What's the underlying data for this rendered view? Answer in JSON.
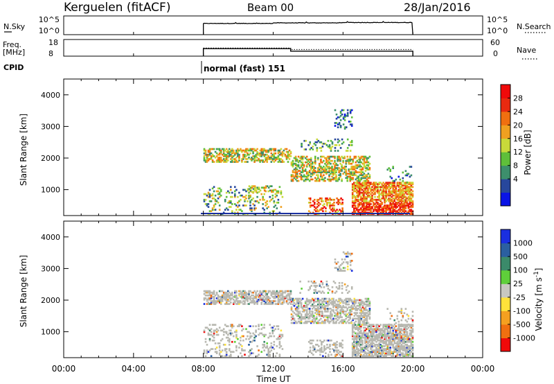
{
  "header": {
    "station": "Kerguelen (fitACF)",
    "beam": "Beam 00",
    "date": "28/Jan/2016"
  },
  "nsky_panel": {
    "left_label": "N.Sky",
    "left_ticks": [
      "10^5",
      "10^0"
    ],
    "right_ticks": [
      "10^5",
      "10^0"
    ],
    "right_label": "N.Search"
  },
  "freq_panel": {
    "left_label_1": "Freq.",
    "left_label_2": "[MHz]",
    "left_ticks": [
      "18",
      "8"
    ],
    "right_ticks": [
      "60",
      "0"
    ],
    "right_label": "Nave"
  },
  "cpid": {
    "label": "CPID",
    "mode": "normal (fast) 151"
  },
  "colors": {
    "power_scale": [
      "#0a14e6",
      "#27479c",
      "#3d8f6c",
      "#5fbf3a",
      "#c8d93a",
      "#f0a020",
      "#f06f10",
      "#e82a10",
      "#f00a0a"
    ],
    "velocity_scale": [
      "#1a2fe0",
      "#2b5fa0",
      "#3b8a6a",
      "#5fcf3a",
      "#c8c8c0",
      "#ffe23a",
      "#f5a020",
      "#f06f10",
      "#f00a0a"
    ],
    "ground_scatter": "#b8b8b0"
  },
  "chart_data": [
    {
      "type": "line",
      "name": "sky-noise",
      "x": [
        "08:00",
        "12:00",
        "16:00",
        "20:00"
      ],
      "values": [
        3.0,
        3.1,
        3.25,
        3.2
      ],
      "ylim": [
        0,
        5
      ]
    },
    {
      "type": "line",
      "name": "frequency",
      "x": [
        "08:00",
        "13:00",
        "13:00",
        "20:00"
      ],
      "values": [
        12.5,
        12.5,
        11.0,
        11.0
      ],
      "ylim": [
        8,
        18
      ]
    },
    {
      "type": "heatmap",
      "ylabel": "Slant Range [km]",
      "colorbar_label": "Power [dB]",
      "colorbar_ticks": [
        "28",
        "24",
        "20",
        "16",
        "12",
        "8",
        "4"
      ],
      "x_ticks": [
        "00:00",
        "04:00",
        "08:00",
        "12:00",
        "16:00",
        "20:00",
        "00:00"
      ],
      "y_ticks": [
        "4000",
        "3000",
        "2000",
        "1000"
      ],
      "ylim": [
        180,
        4500
      ],
      "xlim": [
        0,
        24
      ],
      "data_window": [
        8,
        20
      ],
      "regions": [
        {
          "t": [
            8.0,
            13.0
          ],
          "r": [
            1850,
            2300
          ],
          "value": "mixed"
        },
        {
          "t": [
            13.0,
            17.5
          ],
          "r": [
            1200,
            2000
          ],
          "value": "mixed"
        },
        {
          "t": [
            16.5,
            20.0
          ],
          "r": [
            200,
            1200
          ],
          "value": "high"
        }
      ]
    },
    {
      "type": "heatmap",
      "ylabel": "Slant Range [km]",
      "xlabel": "Time UT",
      "colorbar_label": "Velocity [m s^-1]",
      "colorbar_ticks": [
        "1000",
        "500",
        "100",
        "25",
        "-25",
        "-100",
        "-500",
        "-1000"
      ],
      "x_ticks": [
        "00:00",
        "04:00",
        "08:00",
        "12:00",
        "16:00",
        "20:00",
        "00:00"
      ],
      "y_ticks": [
        "4000",
        "3000",
        "2000",
        "1000"
      ],
      "ylim": [
        180,
        4500
      ],
      "xlim": [
        0,
        24
      ],
      "data_window": [
        8,
        20
      ]
    }
  ]
}
